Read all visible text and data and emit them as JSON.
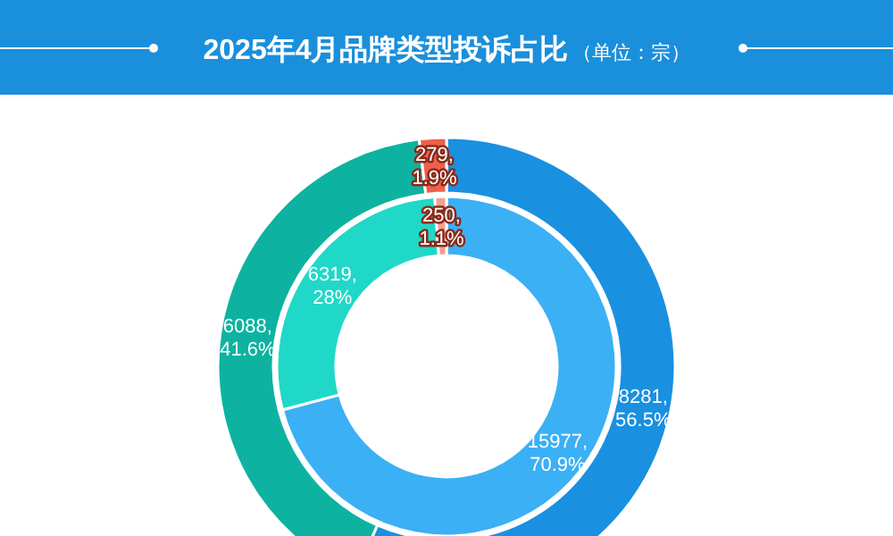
{
  "chart_data": [
    {
      "type": "donut",
      "title": "2025年4月品牌类型投诉占比",
      "subtitle": "（单位：宗）",
      "categories": [
        null,
        null,
        null
      ],
      "values": [
        8281,
        6088,
        279
      ],
      "colors": [
        "#1a90e0",
        "#0db3a0",
        "#f0604a"
      ],
      "value_labels": [
        "8281,\n56.5%",
        "6088,\n41.6%",
        "279,\n1.9%"
      ]
    },
    {
      "type": "donut",
      "categories": [
        null,
        null,
        null
      ],
      "values": [
        15977,
        6319,
        250
      ],
      "colors": [
        "#3bb0f5",
        "#20d8c8",
        "#f4a090"
      ],
      "value_labels": [
        "15977,\n70.9%",
        "6319,\n28%",
        "250,\n1.1%"
      ]
    }
  ]
}
